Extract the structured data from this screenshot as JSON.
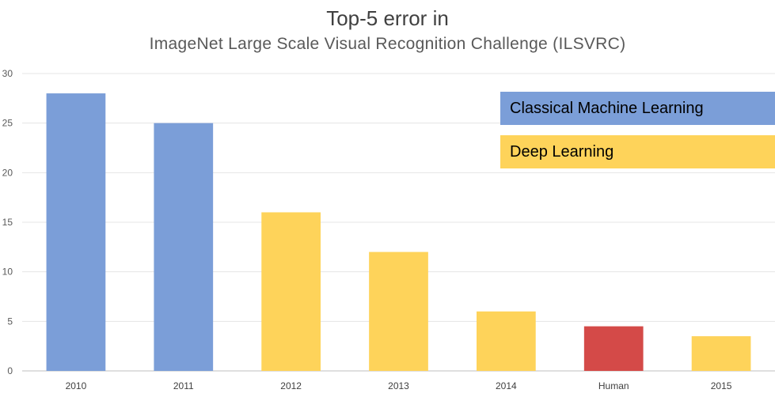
{
  "chart_data": {
    "type": "bar",
    "title": "Top-5 error in",
    "subtitle": "ImageNet Large Scale Visual Recognition Challenge (ILSVRC)",
    "xlabel": "",
    "ylabel": "",
    "categories": [
      "2010",
      "2011",
      "2012",
      "2013",
      "2014",
      "Human",
      "2015"
    ],
    "values": [
      28,
      25,
      16,
      12,
      6,
      4.5,
      3.5
    ],
    "bar_groups": [
      "Classical Machine Learning",
      "Classical Machine Learning",
      "Deep Learning",
      "Deep Learning",
      "Deep Learning",
      "Human",
      "Deep Learning"
    ],
    "ylim": [
      0,
      30
    ],
    "yticks": [
      "0",
      "5",
      "10",
      "15",
      "20",
      "25",
      "30"
    ],
    "grid": true,
    "legend_position": "top-right",
    "legend": [
      {
        "label": "Classical Machine Learning",
        "color": "#7b9ed8"
      },
      {
        "label": "Deep Learning",
        "color": "#fed35a"
      }
    ],
    "colors": {
      "Classical Machine Learning": "#7b9ed8",
      "Deep Learning": "#fed35a",
      "Human": "#d44a48"
    }
  }
}
